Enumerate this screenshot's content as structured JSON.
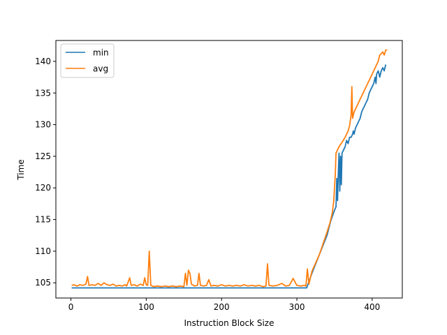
{
  "chart_data": {
    "type": "line",
    "title": "",
    "xlabel": "Instruction Block Size",
    "ylabel": "Time",
    "xlim": [
      -20,
      440
    ],
    "ylim": [
      102.6,
      143.3
    ],
    "x_ticks": [
      0,
      100,
      200,
      300,
      400
    ],
    "y_ticks": [
      105,
      110,
      115,
      120,
      125,
      130,
      135,
      140
    ],
    "grid": false,
    "legend_position": "upper-left",
    "series": [
      {
        "name": "min",
        "color": "#1f77b4",
        "points": [
          [
            1,
            104.2
          ],
          [
            50,
            104.2
          ],
          [
            100,
            104.2
          ],
          [
            150,
            104.2
          ],
          [
            200,
            104.2
          ],
          [
            250,
            104.2
          ],
          [
            300,
            104.2
          ],
          [
            313,
            104.2
          ],
          [
            320,
            106.5
          ],
          [
            330,
            109.5
          ],
          [
            340,
            112.5
          ],
          [
            345,
            114.8
          ],
          [
            350,
            116.5
          ],
          [
            352,
            117.0
          ],
          [
            353,
            121.5
          ],
          [
            354,
            118.0
          ],
          [
            355,
            122.0
          ],
          [
            356,
            125.5
          ],
          [
            357,
            119.5
          ],
          [
            358,
            125.0
          ],
          [
            359,
            120.5
          ],
          [
            360,
            125.5
          ],
          [
            362,
            126.0
          ],
          [
            364,
            126.5
          ],
          [
            366,
            127.5
          ],
          [
            368,
            127.0
          ],
          [
            370,
            128.0
          ],
          [
            372,
            128.0
          ],
          [
            374,
            128.5
          ],
          [
            375,
            129.0
          ],
          [
            376,
            128.5
          ],
          [
            378,
            129.5
          ],
          [
            380,
            130.0
          ],
          [
            382,
            130.5
          ],
          [
            384,
            131.0
          ],
          [
            386,
            132.0
          ],
          [
            388,
            132.5
          ],
          [
            390,
            133.0
          ],
          [
            392,
            133.5
          ],
          [
            394,
            134.0
          ],
          [
            396,
            135.0
          ],
          [
            398,
            135.5
          ],
          [
            400,
            136.0
          ],
          [
            402,
            136.5
          ],
          [
            404,
            137.5
          ],
          [
            405,
            136.5
          ],
          [
            406,
            138.0
          ],
          [
            408,
            138.5
          ],
          [
            410,
            137.5
          ],
          [
            412,
            138.5
          ],
          [
            414,
            139.0
          ],
          [
            416,
            138.5
          ],
          [
            418,
            139.5
          ]
        ]
      },
      {
        "name": "avg",
        "color": "#ff7f0e",
        "points": [
          [
            1,
            104.6
          ],
          [
            4,
            104.7
          ],
          [
            8,
            104.5
          ],
          [
            12,
            104.7
          ],
          [
            16,
            104.6
          ],
          [
            20,
            104.8
          ],
          [
            22,
            106.0
          ],
          [
            24,
            104.6
          ],
          [
            28,
            104.7
          ],
          [
            32,
            104.6
          ],
          [
            36,
            104.9
          ],
          [
            40,
            104.6
          ],
          [
            44,
            105.0
          ],
          [
            48,
            104.7
          ],
          [
            52,
            104.6
          ],
          [
            56,
            104.8
          ],
          [
            60,
            104.5
          ],
          [
            64,
            104.6
          ],
          [
            68,
            104.5
          ],
          [
            72,
            104.7
          ],
          [
            74,
            104.5
          ],
          [
            78,
            105.8
          ],
          [
            80,
            104.6
          ],
          [
            84,
            104.7
          ],
          [
            88,
            104.5
          ],
          [
            92,
            104.8
          ],
          [
            96,
            104.6
          ],
          [
            98,
            105.8
          ],
          [
            100,
            104.7
          ],
          [
            102,
            104.6
          ],
          [
            104,
            110.0
          ],
          [
            106,
            104.6
          ],
          [
            110,
            104.4
          ],
          [
            115,
            104.5
          ],
          [
            120,
            104.4
          ],
          [
            125,
            104.5
          ],
          [
            130,
            104.4
          ],
          [
            135,
            104.5
          ],
          [
            140,
            104.4
          ],
          [
            145,
            104.5
          ],
          [
            150,
            104.4
          ],
          [
            152,
            106.5
          ],
          [
            154,
            104.6
          ],
          [
            156,
            107.0
          ],
          [
            158,
            106.5
          ],
          [
            160,
            104.8
          ],
          [
            164,
            104.5
          ],
          [
            168,
            104.6
          ],
          [
            170,
            106.5
          ],
          [
            172,
            104.6
          ],
          [
            176,
            104.5
          ],
          [
            180,
            104.6
          ],
          [
            183,
            105.5
          ],
          [
            186,
            104.5
          ],
          [
            190,
            104.6
          ],
          [
            195,
            104.5
          ],
          [
            200,
            104.7
          ],
          [
            205,
            104.5
          ],
          [
            210,
            104.6
          ],
          [
            215,
            104.5
          ],
          [
            220,
            104.6
          ],
          [
            225,
            104.5
          ],
          [
            230,
            104.7
          ],
          [
            235,
            104.5
          ],
          [
            240,
            104.6
          ],
          [
            245,
            104.5
          ],
          [
            250,
            104.6
          ],
          [
            255,
            104.4
          ],
          [
            259,
            104.5
          ],
          [
            261,
            108.0
          ],
          [
            263,
            104.6
          ],
          [
            268,
            104.5
          ],
          [
            274,
            104.6
          ],
          [
            280,
            104.9
          ],
          [
            285,
            104.5
          ],
          [
            290,
            104.6
          ],
          [
            295,
            105.7
          ],
          [
            300,
            104.6
          ],
          [
            305,
            104.5
          ],
          [
            310,
            104.6
          ],
          [
            312,
            104.5
          ],
          [
            314,
            107.2
          ],
          [
            316,
            104.8
          ],
          [
            320,
            106.8
          ],
          [
            330,
            109.5
          ],
          [
            340,
            113.0
          ],
          [
            344,
            114.5
          ],
          [
            347,
            116.0
          ],
          [
            349,
            118.0
          ],
          [
            351,
            122.0
          ],
          [
            352,
            125.5
          ],
          [
            356,
            126.5
          ],
          [
            360,
            127.2
          ],
          [
            364,
            128.0
          ],
          [
            368,
            129.0
          ],
          [
            370,
            129.8
          ],
          [
            372,
            131.5
          ],
          [
            373,
            136.0
          ],
          [
            374,
            131.0
          ],
          [
            376,
            132.0
          ],
          [
            380,
            133.0
          ],
          [
            384,
            134.0
          ],
          [
            388,
            135.0
          ],
          [
            392,
            136.0
          ],
          [
            396,
            137.0
          ],
          [
            400,
            138.0
          ],
          [
            404,
            139.0
          ],
          [
            408,
            140.0
          ],
          [
            410,
            141.0
          ],
          [
            412,
            141.2
          ],
          [
            414,
            141.5
          ],
          [
            416,
            141.0
          ],
          [
            418,
            141.8
          ],
          [
            420,
            141.8
          ]
        ]
      }
    ]
  }
}
